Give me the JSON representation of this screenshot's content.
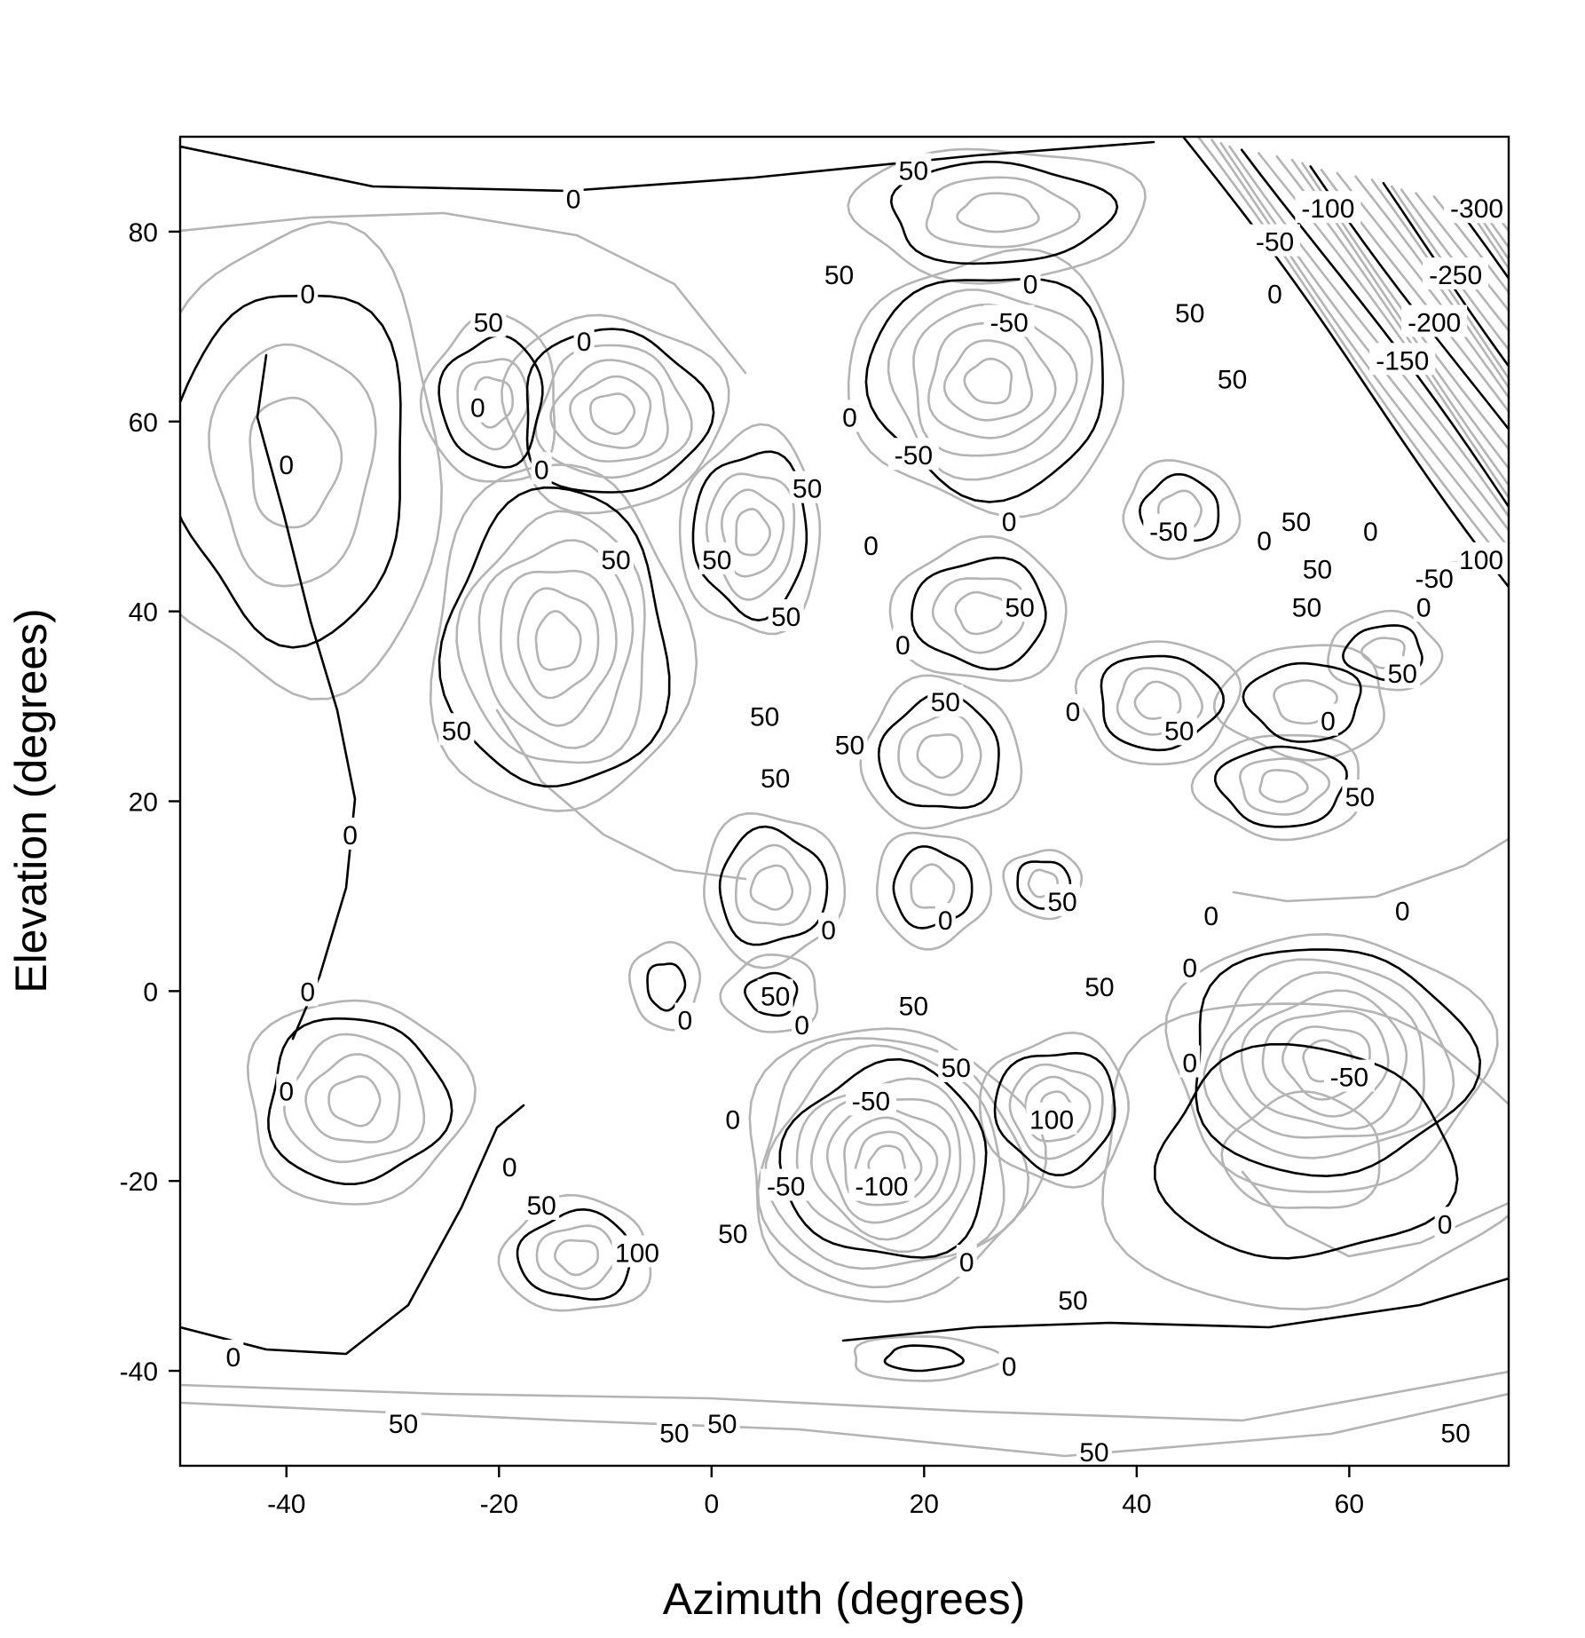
{
  "chart_data": {
    "type": "contour",
    "xlabel": "Azimuth (degrees)",
    "ylabel": "Elevation (degrees)",
    "xlim": [
      -50,
      75
    ],
    "ylim": [
      -50,
      90
    ],
    "xticks": [
      -40,
      -20,
      0,
      20,
      40,
      60
    ],
    "yticks": [
      -40,
      -20,
      0,
      20,
      40,
      60,
      80
    ],
    "grid": false,
    "legend": "none",
    "colors": {
      "labeled_contours": "#000000",
      "minor_contours": "#b4b4b4"
    },
    "contour_labels": [
      {
        "text": "0",
        "x": -13,
        "y": 83.5
      },
      {
        "text": "50",
        "x": 19,
        "y": 86.5
      },
      {
        "text": "50",
        "x": 12,
        "y": 75.5
      },
      {
        "text": "-100",
        "x": 58,
        "y": 82.5
      },
      {
        "text": "-300",
        "x": 72,
        "y": 82.5
      },
      {
        "text": "-50",
        "x": 53,
        "y": 79
      },
      {
        "text": "-250",
        "x": 70,
        "y": 75.5
      },
      {
        "text": "0",
        "x": 30,
        "y": 74.5
      },
      {
        "text": "0",
        "x": 53,
        "y": 73.5
      },
      {
        "text": "0",
        "x": -38,
        "y": 73.5
      },
      {
        "text": "-200",
        "x": 68,
        "y": 70.5
      },
      {
        "text": "-50",
        "x": 28,
        "y": 70.5
      },
      {
        "text": "50",
        "x": -21,
        "y": 70.5
      },
      {
        "text": "50",
        "x": 45,
        "y": 71.5
      },
      {
        "text": "0",
        "x": -12,
        "y": 68.5
      },
      {
        "text": "-150",
        "x": 65,
        "y": 66.5
      },
      {
        "text": "50",
        "x": 49,
        "y": 64.5
      },
      {
        "text": "0",
        "x": -22,
        "y": 61.5
      },
      {
        "text": "0",
        "x": 13,
        "y": 60.5
      },
      {
        "text": "-50",
        "x": 19,
        "y": 56.5
      },
      {
        "text": "0",
        "x": -40,
        "y": 55.5
      },
      {
        "text": "0",
        "x": -16,
        "y": 55
      },
      {
        "text": "50",
        "x": 9,
        "y": 53
      },
      {
        "text": "-50",
        "x": 43,
        "y": 48.5
      },
      {
        "text": "0",
        "x": 28,
        "y": 49.5
      },
      {
        "text": "50",
        "x": 55,
        "y": 49.5
      },
      {
        "text": "0",
        "x": 62,
        "y": 48.5
      },
      {
        "text": "50",
        "x": -9,
        "y": 45.5
      },
      {
        "text": "50",
        "x": 0.5,
        "y": 45.5
      },
      {
        "text": "0",
        "x": 15,
        "y": 47
      },
      {
        "text": "0",
        "x": 52,
        "y": 47.5
      },
      {
        "text": "-100",
        "x": 72,
        "y": 45.5
      },
      {
        "text": "50",
        "x": 57,
        "y": 44.5
      },
      {
        "text": "-50",
        "x": 68,
        "y": 43.5
      },
      {
        "text": "50",
        "x": 29,
        "y": 40.5
      },
      {
        "text": "50",
        "x": 56,
        "y": 40.5
      },
      {
        "text": "0",
        "x": 67,
        "y": 40.5
      },
      {
        "text": "50",
        "x": 7,
        "y": 39.5
      },
      {
        "text": "0",
        "x": 18,
        "y": 36.5
      },
      {
        "text": "50",
        "x": 65,
        "y": 33.5
      },
      {
        "text": "50",
        "x": 22,
        "y": 30.5
      },
      {
        "text": "0",
        "x": 34,
        "y": 29.5
      },
      {
        "text": "0",
        "x": 58,
        "y": 28.5
      },
      {
        "text": "50",
        "x": 5,
        "y": 29
      },
      {
        "text": "50",
        "x": -24,
        "y": 27.5
      },
      {
        "text": "50",
        "x": 44,
        "y": 27.5
      },
      {
        "text": "50",
        "x": 13,
        "y": 26
      },
      {
        "text": "50",
        "x": 6,
        "y": 22.5
      },
      {
        "text": "50",
        "x": 61,
        "y": 20.5
      },
      {
        "text": "0",
        "x": -34,
        "y": 16.5
      },
      {
        "text": "50",
        "x": 33,
        "y": 9.5
      },
      {
        "text": "0",
        "x": 22,
        "y": 7.5
      },
      {
        "text": "0",
        "x": 11,
        "y": 6.5
      },
      {
        "text": "0",
        "x": 47,
        "y": 8
      },
      {
        "text": "0",
        "x": 65,
        "y": 8.5
      },
      {
        "text": "0",
        "x": 45,
        "y": 2.5
      },
      {
        "text": "0",
        "x": -38,
        "y": 0
      },
      {
        "text": "50",
        "x": 36.5,
        "y": 0.5
      },
      {
        "text": "50",
        "x": 6,
        "y": -0.5
      },
      {
        "text": "50",
        "x": 19,
        "y": -1.5
      },
      {
        "text": "0",
        "x": -2.5,
        "y": -3
      },
      {
        "text": "0",
        "x": 8.5,
        "y": -3.5
      },
      {
        "text": "0",
        "x": 45,
        "y": -7.5
      },
      {
        "text": "-50",
        "x": 60,
        "y": -9
      },
      {
        "text": "50",
        "x": 23,
        "y": -8
      },
      {
        "text": "0",
        "x": -40,
        "y": -10.5
      },
      {
        "text": "-50",
        "x": 15,
        "y": -11.5
      },
      {
        "text": "100",
        "x": 32,
        "y": -13.5
      },
      {
        "text": "0",
        "x": 2,
        "y": -13.5
      },
      {
        "text": "0",
        "x": -19,
        "y": -18.5
      },
      {
        "text": "-50",
        "x": 7,
        "y": -20.5
      },
      {
        "text": "-100",
        "x": 16,
        "y": -20.5
      },
      {
        "text": "50",
        "x": -16,
        "y": -22.5
      },
      {
        "text": "0",
        "x": 69,
        "y": -24.5
      },
      {
        "text": "50",
        "x": 2,
        "y": -25.5
      },
      {
        "text": "100",
        "x": -7,
        "y": -27.5
      },
      {
        "text": "0",
        "x": 24,
        "y": -28.5
      },
      {
        "text": "50",
        "x": 34,
        "y": -32.5
      },
      {
        "text": "0",
        "x": -45,
        "y": -38.5
      },
      {
        "text": "0",
        "x": 28,
        "y": -39.5
      },
      {
        "text": "50",
        "x": -29,
        "y": -45.5
      },
      {
        "text": "50",
        "x": 1,
        "y": -45.5
      },
      {
        "text": "50",
        "x": -3.5,
        "y": -46.5
      },
      {
        "text": "50",
        "x": 70,
        "y": -46.5
      },
      {
        "text": "50",
        "x": 36,
        "y": -48.5
      }
    ]
  }
}
